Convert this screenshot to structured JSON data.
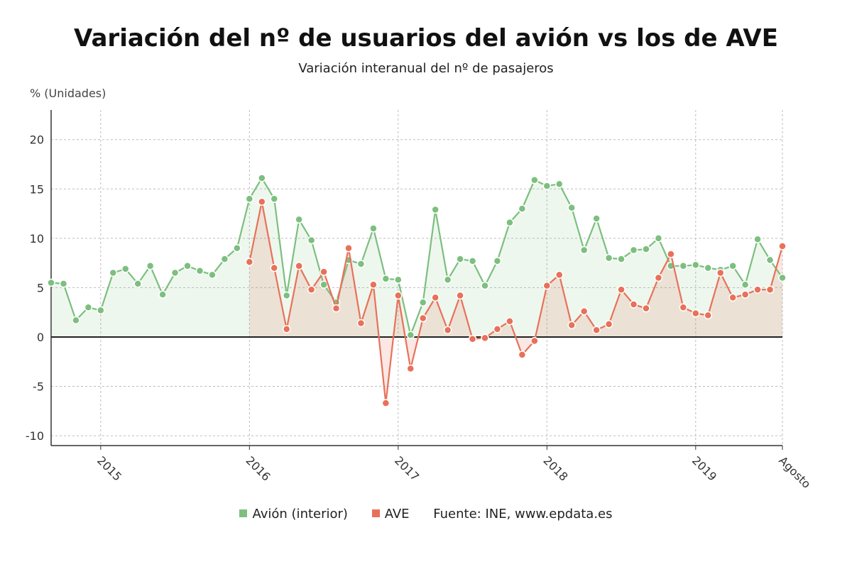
{
  "chart_data": {
    "type": "line",
    "title": "Variación del nº de usuarios del avión vs los de AVE",
    "subtitle": "Variación interanual del nº de pasajeros",
    "ylabel": "% (Unidades)",
    "ylim": [
      -11,
      23
    ],
    "yticks": [
      -10,
      -5,
      0,
      5,
      10,
      15,
      20
    ],
    "x_start": "2014-09",
    "x_end": "2019-08",
    "x_ticks": [
      {
        "label": "2015",
        "date": "2015-01"
      },
      {
        "label": "2016",
        "date": "2016-01"
      },
      {
        "label": "2017",
        "date": "2017-01"
      },
      {
        "label": "2018",
        "date": "2018-01"
      },
      {
        "label": "2019",
        "date": "2019-01"
      },
      {
        "label": "Agosto",
        "date": "2019-08"
      }
    ],
    "grid": true,
    "legend_position": "bottom",
    "series": [
      {
        "name": "Avión (interior)",
        "color": "#7cbf7f",
        "start": "2014-09",
        "values": [
          5.5,
          5.4,
          1.7,
          3.0,
          2.7,
          6.5,
          6.9,
          5.4,
          7.2,
          4.3,
          6.5,
          7.2,
          6.7,
          6.3,
          7.9,
          9.0,
          14.0,
          16.1,
          14.0,
          4.2,
          11.9,
          9.8,
          5.3,
          3.5,
          7.8,
          7.4,
          11.0,
          5.9,
          5.8,
          0.2,
          3.5,
          12.9,
          5.8,
          7.9,
          7.7,
          5.2,
          7.7,
          11.6,
          13.0,
          15.9,
          15.3,
          15.5,
          13.1,
          8.8,
          12.0,
          8.0,
          7.9,
          8.8,
          8.9,
          10.0,
          7.2,
          7.2,
          7.3,
          7.0,
          6.8,
          7.2,
          5.3,
          9.9,
          7.8,
          6.0
        ]
      },
      {
        "name": "AVE",
        "color": "#e8715a",
        "start": "2016-01",
        "values": [
          7.6,
          13.7,
          7.0,
          0.8,
          7.2,
          4.8,
          6.6,
          2.9,
          9.0,
          1.4,
          5.3,
          -6.7,
          4.2,
          -3.2,
          1.9,
          4.0,
          0.7,
          4.2,
          -0.2,
          -0.1,
          0.8,
          1.6,
          -1.8,
          -0.4,
          5.2,
          6.3,
          1.2,
          2.6,
          0.7,
          1.3,
          4.8,
          3.3,
          2.9,
          6.0,
          8.4,
          3.0,
          2.4,
          2.2,
          6.5,
          4.0,
          4.3,
          4.8,
          4.8,
          9.2
        ]
      }
    ],
    "source": "Fuente: INE, www.epdata.es"
  }
}
